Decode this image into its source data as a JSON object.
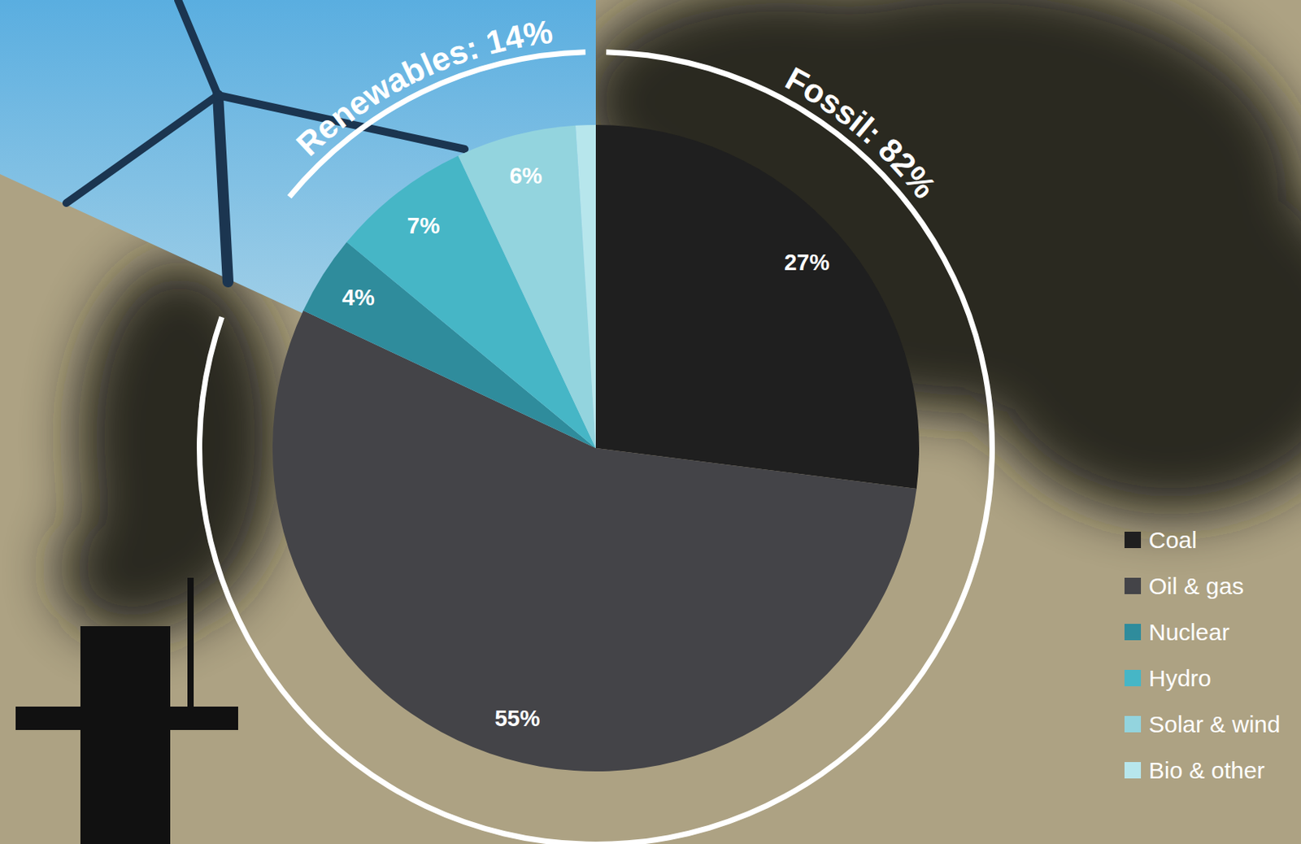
{
  "chart_data": {
    "type": "pie",
    "categories": [
      "Coal",
      "Oil & gas",
      "Nuclear",
      "Hydro",
      "Solar & wind",
      "Bio & other"
    ],
    "values": [
      27,
      55,
      4,
      7,
      6,
      1
    ],
    "value_labels": [
      "27%",
      "55%",
      "4%",
      "7%",
      "6%",
      null
    ],
    "colors": [
      "#1f1f1f",
      "#444448",
      "#2f8c9c",
      "#46b6c6",
      "#93d4de",
      "#b7e6ec"
    ],
    "data_labels": true,
    "legend": "bottom right",
    "annotations": [
      {
        "text": "Fossil: 82%",
        "value": 82,
        "members": [
          "Coal",
          "Oil & gas"
        ]
      },
      {
        "text": "Renewables: 14%",
        "value": 14,
        "members": [
          "Hydro",
          "Solar & wind",
          "Bio & other"
        ]
      }
    ]
  }
}
